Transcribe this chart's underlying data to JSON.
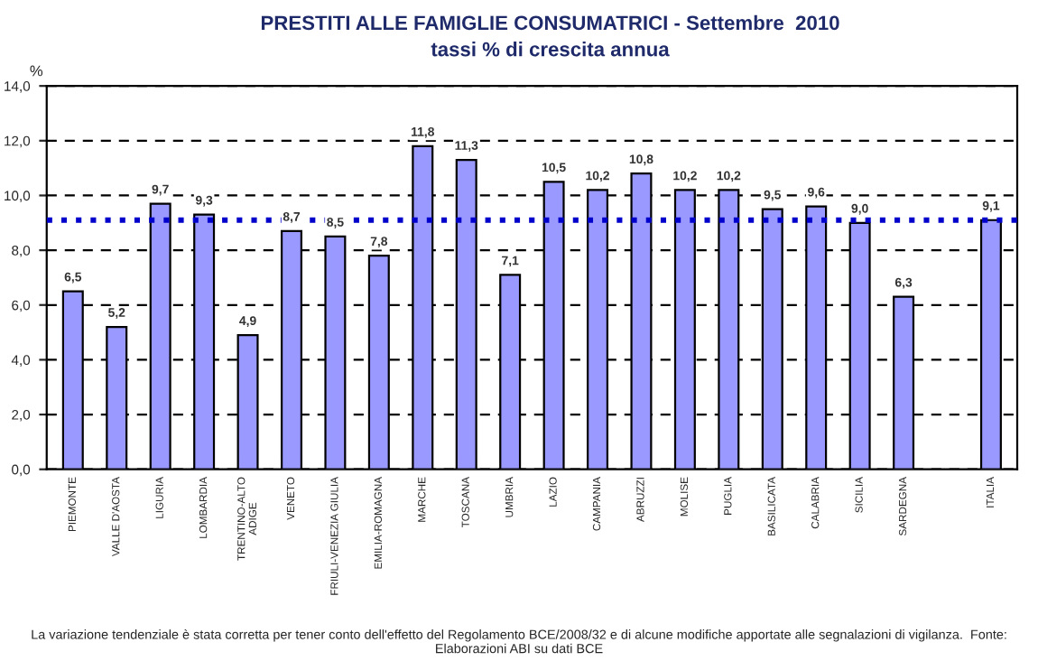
{
  "chart_data": {
    "type": "bar",
    "title": "PRESTITI ALLE FAMIGLIE CONSUMATRICI - Settembre  2010",
    "subtitle": "tassi % di crescita annua",
    "ylabel": "%",
    "categories": [
      "PIEMONTE",
      "VALLE D'AOSTA",
      "LIGURIA",
      "LOMBARDIA",
      "TRENTINO-ALTO\nADIGE",
      "VENETO",
      "FRIULI-VENEZIA GIULIA",
      "EMILIA-ROMAGNA",
      "MARCHE",
      "TOSCANA",
      "UMBRIA",
      "LAZIO",
      "CAMPANIA",
      "ABRUZZI",
      "MOLISE",
      "PUGLIA",
      "BASILICATA",
      "CALABRIA",
      "SICILIA",
      "SARDEGNA",
      null,
      "ITALIA"
    ],
    "values": [
      6.5,
      5.2,
      9.7,
      9.3,
      4.9,
      8.7,
      8.5,
      7.8,
      11.8,
      11.3,
      7.1,
      10.5,
      10.2,
      10.8,
      10.2,
      10.2,
      9.5,
      9.6,
      9.0,
      6.3,
      null,
      9.1
    ],
    "value_labels": [
      "6,5",
      "5,2",
      "9,7",
      "9,3",
      "4,9",
      "8,7",
      "8,5",
      "7,8",
      "11,8",
      "11,3",
      "7,1",
      "10,5",
      "10,2",
      "10,8",
      "10,2",
      "10,2",
      "9,5",
      "9,6",
      "9,0",
      "6,3",
      null,
      "9,1"
    ],
    "color": "#9999ff",
    "ylim": [
      0,
      14
    ],
    "yticks": [
      {
        "value": 0,
        "label": "0,0"
      },
      {
        "value": 2,
        "label": "2,0"
      },
      {
        "value": 4,
        "label": "4,0"
      },
      {
        "value": 6,
        "label": "6,0"
      },
      {
        "value": 8,
        "label": "8,0"
      },
      {
        "value": 10,
        "label": "10,0"
      },
      {
        "value": 12,
        "label": "12,0"
      },
      {
        "value": 14,
        "label": "14,0"
      }
    ],
    "grid": "y",
    "ref_lines": [
      {
        "axis": "y",
        "value": 9.1,
        "color": "#0000cc",
        "line_style": "dotted"
      }
    ],
    "annotations": [
      "La variazione tendenziale è stata corretta per tener conto dell'effetto del Regolamento BCE/2008/32 e di alcune modifiche apportate alle segnalazioni di vigilanza.  Fonte: Elaborazioni ABI su dati BCE"
    ]
  }
}
